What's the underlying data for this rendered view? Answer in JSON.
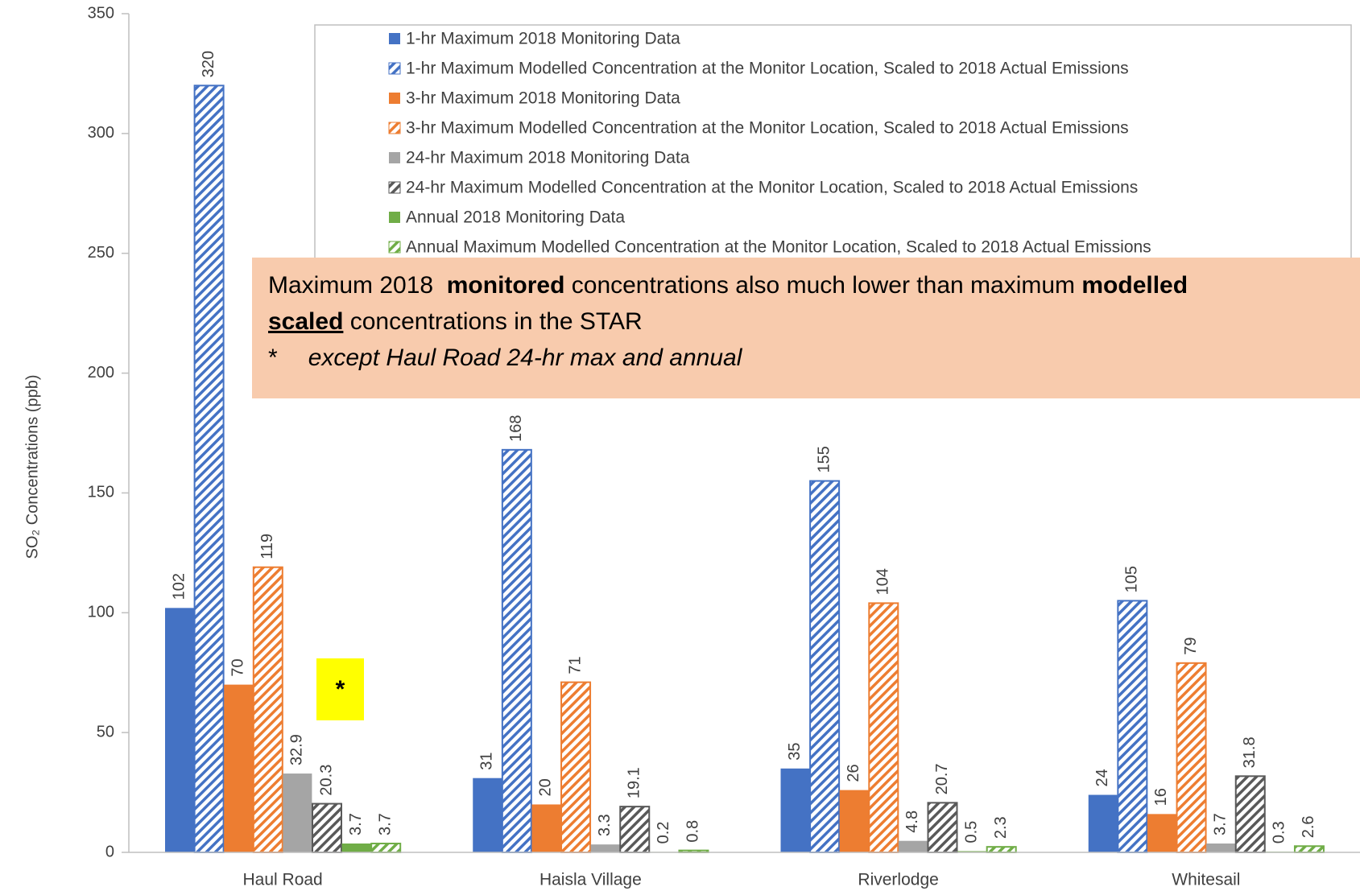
{
  "chart_data": {
    "type": "bar",
    "y_label": "SO₂ Concentrations (ppb)",
    "categories": [
      "Haul Road",
      "Haisla Village",
      "Riverlodge",
      "Whitesail"
    ],
    "ylim": [
      0,
      350
    ],
    "yticks": [
      0,
      50,
      100,
      150,
      200,
      250,
      300,
      350
    ],
    "series": [
      {
        "name": "1-hr Maximum 2018 Monitoring Data",
        "color": "#4472c4",
        "pattern": "solid",
        "values": [
          102,
          31,
          35,
          24
        ]
      },
      {
        "name": "1-hr Maximum Modelled Concentration at the Monitor Location, Scaled to 2018 Actual Emissions",
        "color": "#4472c4",
        "pattern": "hatched",
        "values": [
          320,
          168,
          155,
          105
        ]
      },
      {
        "name": "3-hr Maximum 2018 Monitoring Data",
        "color": "#ed7d31",
        "pattern": "solid",
        "values": [
          70,
          20,
          26,
          16
        ]
      },
      {
        "name": "3-hr Maximum Modelled Concentration at the Monitor Location, Scaled to 2018 Actual Emissions",
        "color": "#ed7d31",
        "pattern": "hatched",
        "values": [
          119,
          71,
          104,
          79
        ]
      },
      {
        "name": "24-hr Maximum 2018 Monitoring Data",
        "color": "#a5a5a5",
        "pattern": "solid",
        "values": [
          32.9,
          3.3,
          4.8,
          3.7
        ]
      },
      {
        "name": "24-hr Maximum Modelled Concentration at the Monitor Location, Scaled to 2018 Actual Emissions",
        "color": "#595959",
        "pattern": "hatched",
        "values": [
          20.3,
          19.1,
          20.7,
          31.8
        ]
      },
      {
        "name": "Annual 2018 Monitoring Data",
        "color": "#70ad47",
        "pattern": "solid",
        "values": [
          3.7,
          0.2,
          0.5,
          0.3
        ]
      },
      {
        "name": "Annual Maximum Modelled Concentration at the Monitor Location, Scaled to 2018 Actual Emissions",
        "color": "#70ad47",
        "pattern": "hatched",
        "values": [
          3.7,
          0.8,
          2.3,
          2.6
        ]
      }
    ],
    "annotation": [
      [
        {
          "text": "Maximum 2018  ",
          "style": "normal"
        },
        {
          "text": "monitored",
          "style": "bold"
        },
        {
          "text": " concentrations also much lower than maximum ",
          "style": "normal"
        },
        {
          "text": "modelled",
          "style": "bold"
        }
      ],
      [
        {
          "text": "scaled",
          "style": "bold underline"
        },
        {
          "text": " concentrations in the STAR",
          "style": "normal"
        }
      ],
      [
        {
          "text": "*",
          "style": "normal"
        },
        {
          "text": "except Haul Road 24-hr max and annual",
          "style": "italic"
        }
      ]
    ],
    "star_note": "*"
  }
}
